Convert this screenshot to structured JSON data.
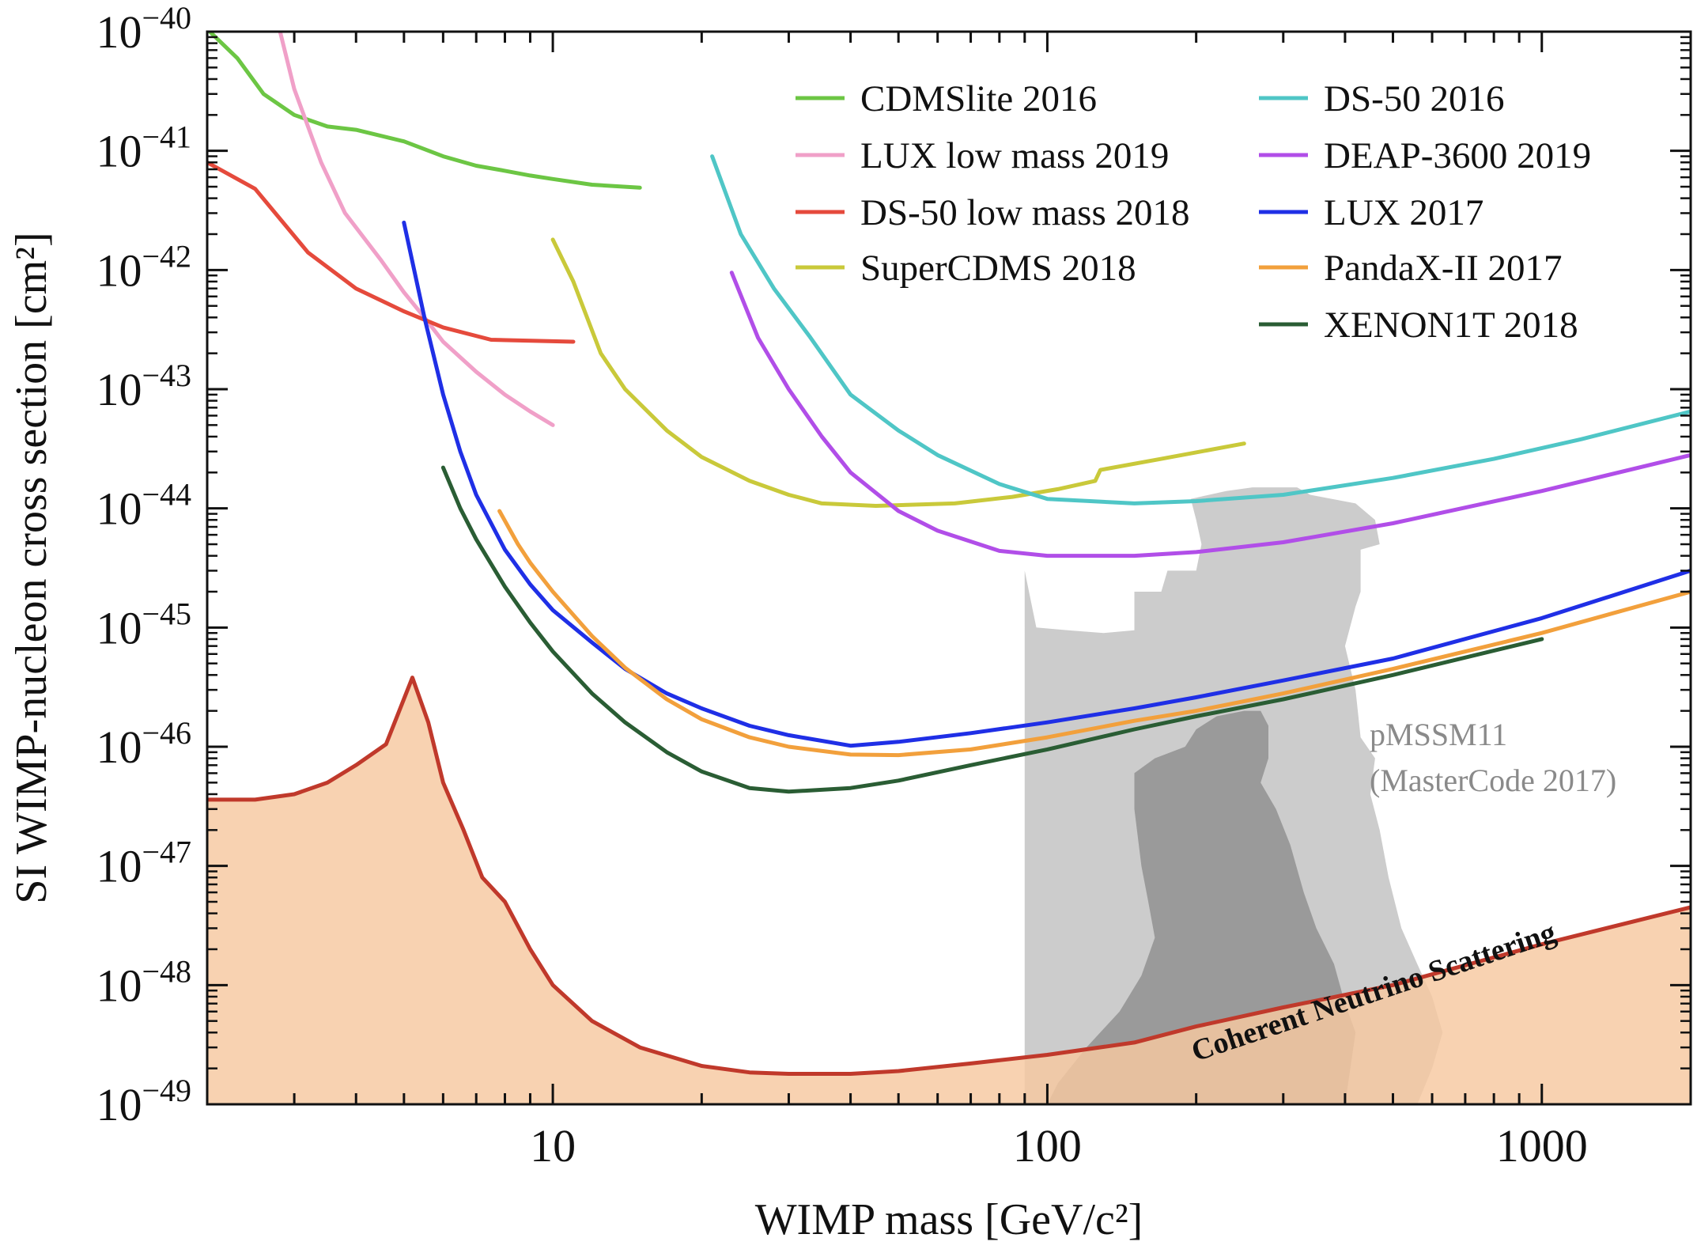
{
  "chart_data": {
    "type": "line",
    "title": "",
    "xlabel": "WIMP mass [GeV/c²]",
    "ylabel": "SI WIMP-nucleon cross section [cm²]",
    "xscale": "log",
    "yscale": "log",
    "xlim": [
      2,
      2000
    ],
    "ylim": [
      1e-49,
      1e-40
    ],
    "x_ticks": [
      {
        "value": 10,
        "label": "10"
      },
      {
        "value": 100,
        "label": "100"
      },
      {
        "value": 1000,
        "label": "1000"
      }
    ],
    "y_ticks": [
      {
        "exp": -40,
        "base": "10",
        "sup": "−40"
      },
      {
        "exp": -41,
        "base": "10",
        "sup": "−41"
      },
      {
        "exp": -42,
        "base": "10",
        "sup": "−42"
      },
      {
        "exp": -43,
        "base": "10",
        "sup": "−43"
      },
      {
        "exp": -44,
        "base": "10",
        "sup": "−44"
      },
      {
        "exp": -45,
        "base": "10",
        "sup": "−45"
      },
      {
        "exp": -46,
        "base": "10",
        "sup": "−46"
      },
      {
        "exp": -47,
        "base": "10",
        "sup": "−47"
      },
      {
        "exp": -48,
        "base": "10",
        "sup": "−48"
      },
      {
        "exp": -49,
        "base": "10",
        "sup": "−49"
      }
    ],
    "grid": false,
    "legend_position": "top-right",
    "series": [
      {
        "name": "CDMSlite 2016",
        "color": "#6cc644",
        "x": [
          2,
          2.3,
          2.6,
          3.0,
          3.5,
          4.0,
          5.0,
          6.0,
          7.0,
          8.0,
          9.0,
          10.0,
          12.0,
          15.0
        ],
        "y": [
          1.05e-40,
          6e-41,
          3e-41,
          2e-41,
          1.6e-41,
          1.5e-41,
          1.2e-41,
          9e-42,
          7.5e-42,
          6.8e-42,
          6.2e-42,
          5.8e-42,
          5.2e-42,
          4.9e-42
        ]
      },
      {
        "name": "LUX low mass 2019",
        "color": "#f0a0c8",
        "x": [
          2.8,
          3.0,
          3.4,
          3.8,
          4.5,
          5.0,
          5.5,
          6.0,
          7.0,
          8.0,
          9.0,
          10.0
        ],
        "y": [
          1.05e-40,
          3.3e-41,
          8e-42,
          3e-42,
          1.2e-42,
          6.5e-43,
          4e-43,
          2.5e-43,
          1.4e-43,
          9e-44,
          6.5e-44,
          5e-44
        ]
      },
      {
        "name": "DS-50 low mass 2018",
        "color": "#e54a3c",
        "x": [
          2.0,
          2.5,
          3.2,
          4.0,
          5.0,
          6.0,
          7.5,
          11.0
        ],
        "y": [
          8e-42,
          4.8e-42,
          1.4e-42,
          7e-43,
          4.5e-43,
          3.3e-43,
          2.6e-43,
          2.5e-43
        ]
      },
      {
        "name": "SuperCDMS 2018",
        "color": "#c9c93a",
        "x": [
          10.0,
          11.0,
          12.5,
          14.0,
          17.0,
          20.0,
          25.0,
          30.0,
          35.0,
          45.0,
          65.0,
          85.0,
          105.0,
          125.0,
          128.0,
          170.0,
          250.0
        ],
        "y": [
          1.8e-42,
          8e-43,
          2e-43,
          1e-43,
          4.5e-44,
          2.7e-44,
          1.7e-44,
          1.3e-44,
          1.1e-44,
          1.05e-44,
          1.1e-44,
          1.25e-44,
          1.45e-44,
          1.7e-44,
          2.1e-44,
          2.6e-44,
          3.5e-44
        ]
      },
      {
        "name": "DS-50 2016",
        "color": "#4fc6c6",
        "x": [
          21.0,
          24.0,
          28.0,
          33.0,
          40.0,
          50.0,
          60.0,
          80.0,
          100.0,
          150.0,
          200.0,
          300.0,
          500.0,
          800.0,
          1200.0,
          2000.0
        ],
        "y": [
          9e-42,
          2e-42,
          7e-43,
          2.8e-43,
          9e-44,
          4.5e-44,
          2.8e-44,
          1.6e-44,
          1.2e-44,
          1.1e-44,
          1.15e-44,
          1.3e-44,
          1.8e-44,
          2.6e-44,
          3.8e-44,
          6.5e-44
        ]
      },
      {
        "name": "DEAP-3600 2019",
        "color": "#b14ee8",
        "x": [
          23.0,
          26.0,
          30.0,
          35.0,
          40.0,
          50.0,
          60.0,
          80.0,
          100.0,
          150.0,
          200.0,
          300.0,
          500.0,
          1000.0,
          2000.0
        ],
        "y": [
          9.5e-43,
          2.7e-43,
          1e-43,
          4e-44,
          2e-44,
          9.5e-45,
          6.5e-45,
          4.4e-45,
          4e-45,
          4e-45,
          4.3e-45,
          5.2e-45,
          7.5e-45,
          1.4e-44,
          2.8e-44
        ]
      },
      {
        "name": "LUX 2017",
        "color": "#1f2fe6",
        "x": [
          5.0,
          5.5,
          6.0,
          6.5,
          7.0,
          8.0,
          9.0,
          10.0,
          12.0,
          14.0,
          17.0,
          20.0,
          25.0,
          30.0,
          40.0,
          50.0,
          70.0,
          100.0,
          150.0,
          200.0,
          300.0,
          500.0,
          1000.0,
          2000.0
        ],
        "y": [
          2.5e-42,
          4e-43,
          9e-44,
          3e-44,
          1.3e-44,
          4.5e-45,
          2.3e-45,
          1.4e-45,
          7.5e-46,
          4.5e-46,
          2.8e-46,
          2.1e-46,
          1.5e-46,
          1.25e-46,
          1.02e-46,
          1.1e-46,
          1.3e-46,
          1.6e-46,
          2.1e-46,
          2.6e-46,
          3.6e-46,
          5.5e-46,
          1.2e-45,
          3e-45
        ]
      },
      {
        "name": "PandaX-II 2017",
        "color": "#f2a03c",
        "x": [
          7.8,
          8.5,
          9.0,
          10.0,
          12.0,
          14.0,
          17.0,
          20.0,
          25.0,
          30.0,
          40.0,
          50.0,
          70.0,
          100.0,
          150.0,
          200.0,
          300.0,
          500.0,
          1000.0,
          2000.0
        ],
        "y": [
          9.5e-45,
          5e-45,
          3.5e-45,
          2e-45,
          8.5e-46,
          4.6e-46,
          2.5e-46,
          1.7e-46,
          1.2e-46,
          1e-46,
          8.6e-47,
          8.5e-47,
          9.5e-47,
          1.2e-46,
          1.65e-46,
          2e-46,
          2.8e-46,
          4.5e-46,
          9e-46,
          2e-45
        ]
      },
      {
        "name": "XENON1T 2018",
        "color": "#2a5d34",
        "x": [
          6.0,
          6.5,
          7.0,
          8.0,
          9.0,
          10.0,
          12.0,
          14.0,
          17.0,
          20.0,
          25.0,
          30.0,
          40.0,
          50.0,
          70.0,
          100.0,
          150.0,
          200.0,
          300.0,
          500.0,
          1000.0
        ],
        "y": [
          2.2e-44,
          1e-44,
          5.5e-45,
          2.2e-45,
          1.1e-45,
          6.3e-46,
          2.8e-46,
          1.6e-46,
          9e-47,
          6.2e-47,
          4.5e-47,
          4.2e-47,
          4.5e-47,
          5.2e-47,
          7e-47,
          9.5e-47,
          1.4e-46,
          1.8e-46,
          2.5e-46,
          4e-46,
          8e-46
        ]
      }
    ],
    "neutrino_floor": {
      "label": "Coherent Neutrino Scattering",
      "color": "#c0392b",
      "fill": "#f6c8a0",
      "x": [
        2.0,
        2.5,
        3.0,
        3.5,
        4.0,
        4.6,
        5.2,
        5.6,
        6.0,
        6.6,
        7.2,
        8.0,
        9.0,
        10.0,
        12.0,
        15.0,
        20.0,
        25.0,
        30.0,
        40.0,
        50.0,
        70.0,
        100.0,
        150.0,
        200.0,
        300.0,
        500.0,
        1000.0,
        2000.0
      ],
      "y": [
        3.6e-47,
        3.6e-47,
        4e-47,
        5e-47,
        7e-47,
        1.05e-46,
        3.8e-46,
        1.6e-46,
        5e-47,
        2e-47,
        8e-48,
        5e-48,
        2e-48,
        1e-48,
        5e-49,
        3e-49,
        2.1e-49,
        1.85e-49,
        1.8e-49,
        1.8e-49,
        1.9e-49,
        2.2e-49,
        2.6e-49,
        3.3e-49,
        4.5e-49,
        6.5e-49,
        1e-48,
        2.2e-48,
        4.5e-48
      ]
    },
    "pmssm_region": {
      "label_line1": "pMSSM11",
      "label_line2": "(MasterCode 2017)",
      "outer_color": "#cccccc",
      "inner_color": "#9a9a9a",
      "outer_x": [
        90,
        95,
        110,
        130,
        140,
        150,
        160,
        180,
        200,
        230,
        260,
        300,
        340,
        380,
        400,
        420,
        450,
        440,
        430,
        430,
        460,
        490,
        520,
        560,
        600,
        640,
        600,
        520,
        400,
        300,
        200,
        150,
        120,
        100,
        95,
        90
      ],
      "outer_y": [
        1e-49,
        1e-49,
        1e-49,
        1e-49,
        1e-49,
        1e-49,
        1e-49,
        1e-49,
        1e-49,
        1e-49,
        1e-49,
        1e-49,
        1e-49,
        1e-49,
        1e-49,
        1e-49,
        1e-49,
        1e-49,
        1e-49,
        1e-49,
        1e-49,
        1e-49,
        1e-49,
        1e-49,
        1e-49,
        1e-49,
        1e-49,
        1e-49,
        1e-49,
        1e-49,
        1e-49,
        1e-49,
        1e-49,
        1e-49,
        1e-49,
        1e-49
      ],
      "inner_x": [],
      "inner_y": []
    }
  }
}
